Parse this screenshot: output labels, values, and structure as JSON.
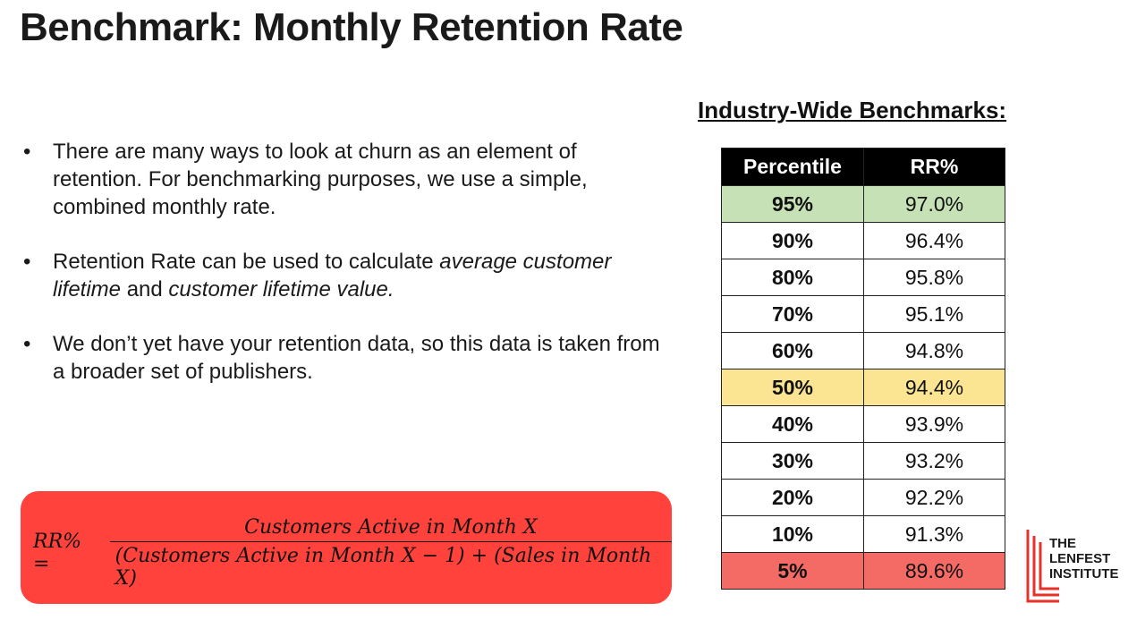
{
  "title": "Benchmark: Monthly Retention Rate",
  "bullets": [
    {
      "text": "There are many ways to look at churn as an element of retention. For benchmarking purposes, we use a simple, combined monthly rate."
    },
    {
      "text_a": "Retention Rate can be used to calculate ",
      "em_a": "average customer lifetime",
      "text_b": " and ",
      "em_b": "customer lifetime value."
    },
    {
      "text": "We don’t yet have your retention data, so this data is taken from a broader set of publishers."
    }
  ],
  "bullet_glyph": "•",
  "formula": {
    "lhs": "RR% =",
    "numerator": "Customers Active in Month X",
    "denominator": "(Customers Active in Month X − 1) + (Sales in Month X)",
    "box_color": "#ff423c"
  },
  "benchmarks": {
    "heading": "Industry-Wide Benchmarks:",
    "columns": [
      "Percentile",
      "RR%"
    ],
    "rows": [
      {
        "percentile": "95%",
        "rr": "97.0%",
        "highlight": "#c5e1b5"
      },
      {
        "percentile": "90%",
        "rr": "96.4%"
      },
      {
        "percentile": "80%",
        "rr": "95.8%"
      },
      {
        "percentile": "70%",
        "rr": "95.1%"
      },
      {
        "percentile": "60%",
        "rr": "94.8%"
      },
      {
        "percentile": "50%",
        "rr": "94.4%",
        "highlight": "#fbe592"
      },
      {
        "percentile": "40%",
        "rr": "93.9%"
      },
      {
        "percentile": "30%",
        "rr": "93.2%"
      },
      {
        "percentile": "20%",
        "rr": "92.2%"
      },
      {
        "percentile": "10%",
        "rr": "91.3%"
      },
      {
        "percentile": "5%",
        "rr": "89.6%",
        "highlight": "#f46b66"
      }
    ]
  },
  "logo": {
    "lines": [
      "THE",
      "LENFEST",
      "INSTITUTE"
    ],
    "accent_color": "#e8312a"
  }
}
